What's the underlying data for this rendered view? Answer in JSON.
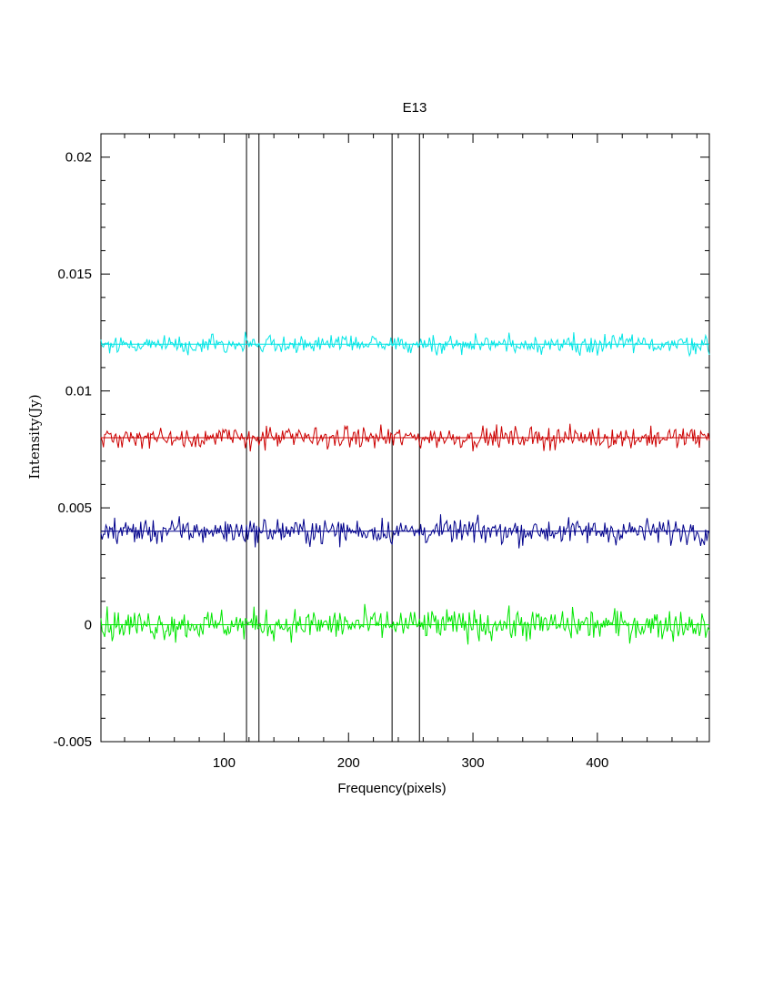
{
  "chart_data": {
    "type": "line",
    "title": "E13",
    "xlabel": "Frequency(pixels)",
    "ylabel": "Intensity(Jy)",
    "xlim": [
      1,
      490
    ],
    "ylim": [
      -0.005,
      0.021
    ],
    "xticks": [
      100,
      200,
      300,
      400
    ],
    "yticks": [
      -0.005,
      0,
      0.005,
      0.01,
      0.015,
      0.02
    ],
    "ytick_labels": [
      "-0.005",
      "0",
      "0.005",
      "0.01",
      "0.015",
      "0.02"
    ],
    "grid": false,
    "vertical_lines": [
      118,
      128,
      235,
      257
    ],
    "series": [
      {
        "color": "#00e5e5",
        "baseline": 0.012,
        "noise": 0.0002,
        "points": 490
      },
      {
        "color": "#cc0000",
        "baseline": 0.008,
        "noise": 0.00023,
        "points": 490
      },
      {
        "color": "#00008b",
        "baseline": 0.004,
        "noise": 0.00027,
        "points": 490
      },
      {
        "color": "#00e600",
        "baseline": 0.0,
        "noise": 0.00033,
        "points": 490
      }
    ]
  }
}
